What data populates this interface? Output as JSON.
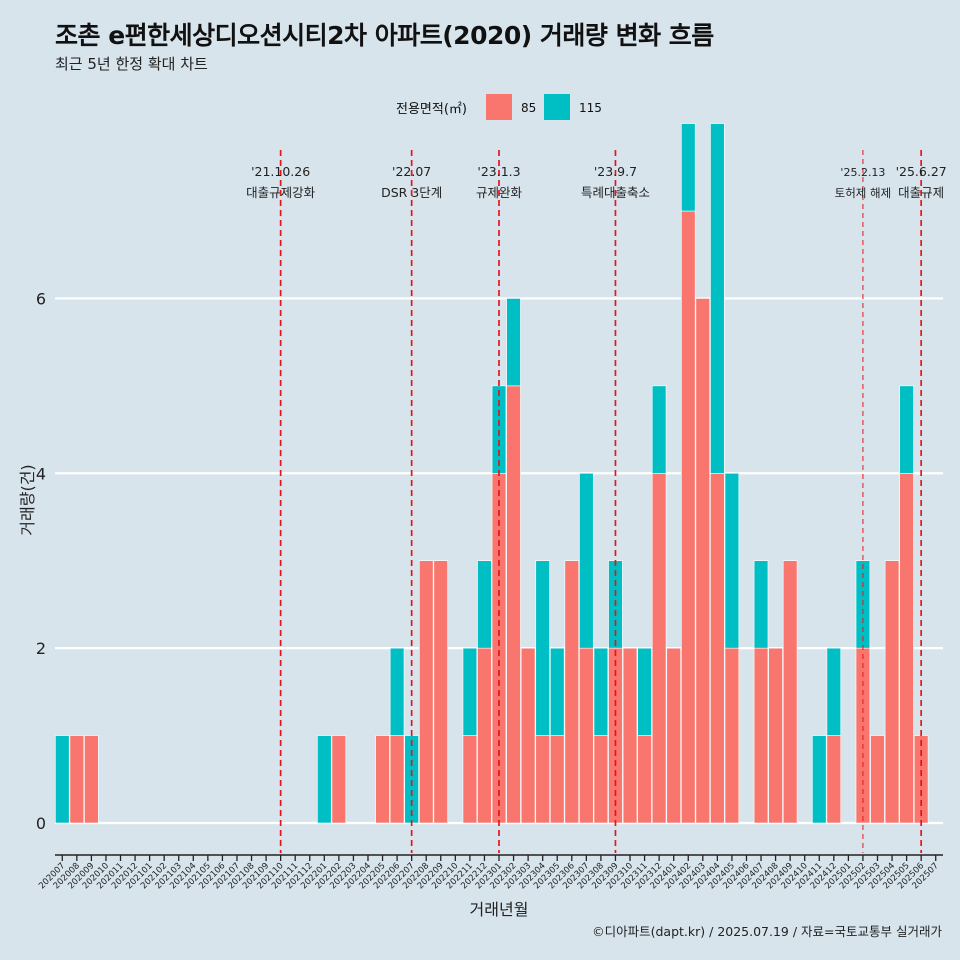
{
  "title": "조촌 e편한세상디오션시티2차 아파트(2020) 거래량 변화 흐름",
  "subtitle": "최근 5년 한정 확대 차트",
  "caption": "©디아파트(dapt.kr) / 2025.07.19 / 자료=국토교통부 실거래가",
  "colors": {
    "background": "#d7e4ec",
    "s85": "#f8766d",
    "s115": "#00bfc4",
    "event_line": "#e8141c"
  },
  "chart_data": {
    "type": "bar",
    "title": "조촌 e편한세상디오션시티2차 아파트(2020) 거래량 변화 흐름",
    "subtitle": "최근 5년 한정 확대 차트",
    "xlabel": "거래년월",
    "ylabel": "거래량(건)",
    "ylim": [
      0,
      7
    ],
    "yticks": [
      0,
      2,
      4,
      6
    ],
    "grid": true,
    "legend": {
      "title": "전용면적(㎡)",
      "position": "top"
    },
    "categories": [
      "202007",
      "202008",
      "202009",
      "202010",
      "202011",
      "202012",
      "202101",
      "202102",
      "202103",
      "202104",
      "202105",
      "202106",
      "202107",
      "202108",
      "202109",
      "202110",
      "202111",
      "202112",
      "202201",
      "202202",
      "202203",
      "202204",
      "202205",
      "202206",
      "202207",
      "202208",
      "202209",
      "202210",
      "202211",
      "202212",
      "202301",
      "202302",
      "202303",
      "202304",
      "202305",
      "202306",
      "202307",
      "202308",
      "202309",
      "202310",
      "202311",
      "202312",
      "202401",
      "202402",
      "202403",
      "202404",
      "202405",
      "202406",
      "202407",
      "202408",
      "202409",
      "202410",
      "202411",
      "202412",
      "202501",
      "202502",
      "202503",
      "202504",
      "202505",
      "202506",
      "202507"
    ],
    "series": [
      {
        "name": "85",
        "color": "#f8766d",
        "values": [
          0,
          1,
          1,
          0,
          0,
          0,
          0,
          0,
          0,
          0,
          0,
          0,
          0,
          0,
          0,
          0,
          0,
          0,
          0,
          1,
          0,
          0,
          1,
          1,
          0,
          3,
          3,
          0,
          1,
          2,
          4,
          5,
          2,
          1,
          1,
          3,
          2,
          1,
          2,
          2,
          1,
          4,
          2,
          7,
          6,
          4,
          2,
          0,
          2,
          2,
          3,
          0,
          0,
          1,
          0,
          2,
          1,
          3,
          4,
          1,
          0
        ]
      },
      {
        "name": "115",
        "color": "#00bfc4",
        "values": [
          1,
          0,
          0,
          0,
          0,
          0,
          0,
          0,
          0,
          0,
          0,
          0,
          0,
          0,
          0,
          0,
          0,
          0,
          1,
          0,
          0,
          0,
          0,
          1,
          1,
          0,
          0,
          0,
          1,
          1,
          1,
          1,
          0,
          2,
          1,
          0,
          2,
          1,
          1,
          0,
          1,
          1,
          0,
          1,
          0,
          4,
          2,
          0,
          1,
          0,
          0,
          0,
          1,
          1,
          0,
          1,
          0,
          0,
          1,
          0,
          0
        ]
      }
    ],
    "events": [
      {
        "date_label": "'21.10.26",
        "label": "대출규제강화",
        "x_category": "202110",
        "style": "dashed"
      },
      {
        "date_label": "'22.07",
        "label": "DSR 3단계",
        "x_category": "202207",
        "style": "dashed"
      },
      {
        "date_label": "'23.1.3",
        "label": "규제완화",
        "x_category": "202301",
        "style": "dashed"
      },
      {
        "date_label": "'23.9.7",
        "label": "특례대출축소",
        "x_category": "202309",
        "style": "dashed"
      },
      {
        "date_label": "'25.2.13",
        "label": "토허제 해제",
        "x_category": "202502",
        "style": "thin-dashed"
      },
      {
        "date_label": "'25.6.27",
        "label": "대출규제",
        "x_category": "202506",
        "style": "dashed"
      }
    ]
  }
}
